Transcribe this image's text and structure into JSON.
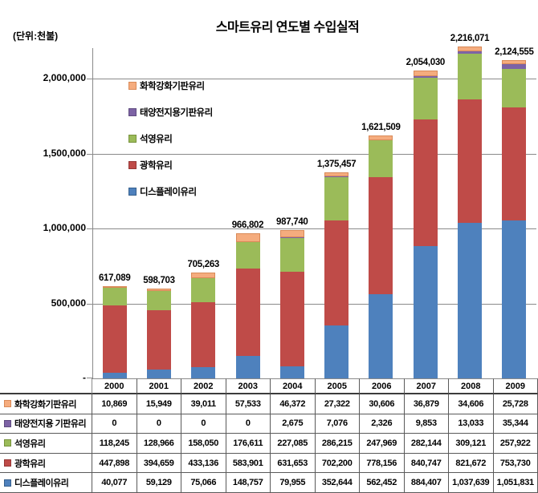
{
  "title": "스마트유리 연도별 수입실적",
  "unit_label": "(단위:천불)",
  "y_axis": {
    "tick_labels": [
      "2,000,000",
      "1,500,000",
      "1,000,000",
      "500,000",
      "-"
    ],
    "tick_values": [
      2000000,
      1500000,
      1000000,
      500000,
      0
    ]
  },
  "legend": {
    "labels": [
      "화학강화기판유리",
      "태양전지용기판유리",
      "석영유리",
      "광학유리",
      "디스플레이유리"
    ]
  },
  "table": {
    "row_labels": [
      "화학강화기판유리",
      "태양전지용 기판유리",
      "석영유리",
      "광학유리",
      "디스플레이유리"
    ]
  },
  "chart_data": {
    "type": "bar",
    "stacked": true,
    "title": "스마트유리 연도별 수입실적",
    "ylabel": "(단위:천불)",
    "ylim": [
      0,
      2000000
    ],
    "grid": true,
    "legend_position": "upper-left-inside",
    "categories": [
      "2000",
      "2001",
      "2002",
      "2003",
      "2004",
      "2005",
      "2006",
      "2007",
      "2008",
      "2009"
    ],
    "series": [
      {
        "name": "화학강화기판유리",
        "color": "#F5AC7E",
        "border": "#D98A58",
        "outlined": true,
        "values": [
          10869,
          15949,
          39011,
          57533,
          46372,
          27322,
          30606,
          36879,
          34606,
          25728
        ]
      },
      {
        "name": "태양전지용 기판유리",
        "color": "#7D63A5",
        "border": "#5F4B80",
        "outlined": false,
        "values": [
          0,
          0,
          0,
          0,
          2675,
          7076,
          2326,
          9853,
          13033,
          35344
        ]
      },
      {
        "name": "석영유리",
        "color": "#9BBB59",
        "border": "#77933C",
        "outlined": false,
        "values": [
          118245,
          128966,
          158050,
          176611,
          227085,
          286215,
          247969,
          282144,
          309121,
          257922
        ]
      },
      {
        "name": "광학유리",
        "color": "#BF4B48",
        "border": "#953735",
        "outlined": false,
        "values": [
          447898,
          394659,
          433136,
          583901,
          631653,
          702200,
          778156,
          840747,
          821672,
          753730
        ]
      },
      {
        "name": "디스플레이유리",
        "color": "#4E81BD",
        "border": "#36608D",
        "outlined": false,
        "values": [
          40077,
          59129,
          75066,
          148757,
          79955,
          352644,
          562452,
          884407,
          1037639,
          1051831
        ]
      }
    ],
    "totals": [
      617089,
      598703,
      705263,
      966802,
      987740,
      1375457,
      1621509,
      2054030,
      2216071,
      2124555
    ],
    "totals_formatted": [
      "617,089",
      "598,703",
      "705,263",
      "966,802",
      "987,740",
      "1,375,457",
      "1,621,509",
      "2,054,030",
      "2,216,071",
      "2,124,555"
    ]
  }
}
